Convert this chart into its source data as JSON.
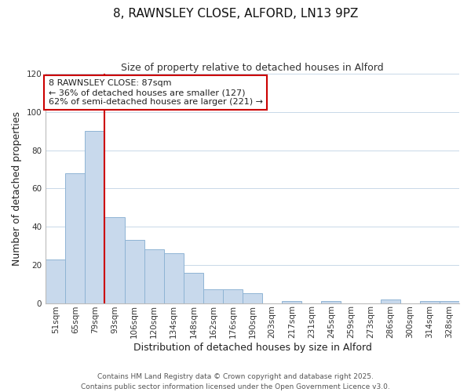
{
  "title": "8, RAWNSLEY CLOSE, ALFORD, LN13 9PZ",
  "subtitle": "Size of property relative to detached houses in Alford",
  "xlabel": "Distribution of detached houses by size in Alford",
  "ylabel": "Number of detached properties",
  "categories": [
    "51sqm",
    "65sqm",
    "79sqm",
    "93sqm",
    "106sqm",
    "120sqm",
    "134sqm",
    "148sqm",
    "162sqm",
    "176sqm",
    "190sqm",
    "203sqm",
    "217sqm",
    "231sqm",
    "245sqm",
    "259sqm",
    "273sqm",
    "286sqm",
    "300sqm",
    "314sqm",
    "328sqm"
  ],
  "values": [
    23,
    68,
    90,
    45,
    33,
    28,
    26,
    16,
    7,
    7,
    5,
    0,
    1,
    0,
    1,
    0,
    0,
    2,
    0,
    1,
    1
  ],
  "bar_color": "#c8d9ec",
  "bar_edge_color": "#8fb4d4",
  "vline_color": "#cc0000",
  "vline_bar_index": 2,
  "ylim": [
    0,
    120
  ],
  "yticks": [
    0,
    20,
    40,
    60,
    80,
    100,
    120
  ],
  "annotation_title": "8 RAWNSLEY CLOSE: 87sqm",
  "annotation_line1": "← 36% of detached houses are smaller (127)",
  "annotation_line2": "62% of semi-detached houses are larger (221) →",
  "annotation_box_color": "#ffffff",
  "annotation_box_edge": "#cc0000",
  "footer1": "Contains HM Land Registry data © Crown copyright and database right 2025.",
  "footer2": "Contains public sector information licensed under the Open Government Licence v3.0.",
  "title_fontsize": 11,
  "subtitle_fontsize": 9,
  "axis_label_fontsize": 9,
  "tick_fontsize": 7.5,
  "annotation_fontsize": 8,
  "footer_fontsize": 6.5,
  "background_color": "#ffffff",
  "grid_color": "#c8d8e8"
}
